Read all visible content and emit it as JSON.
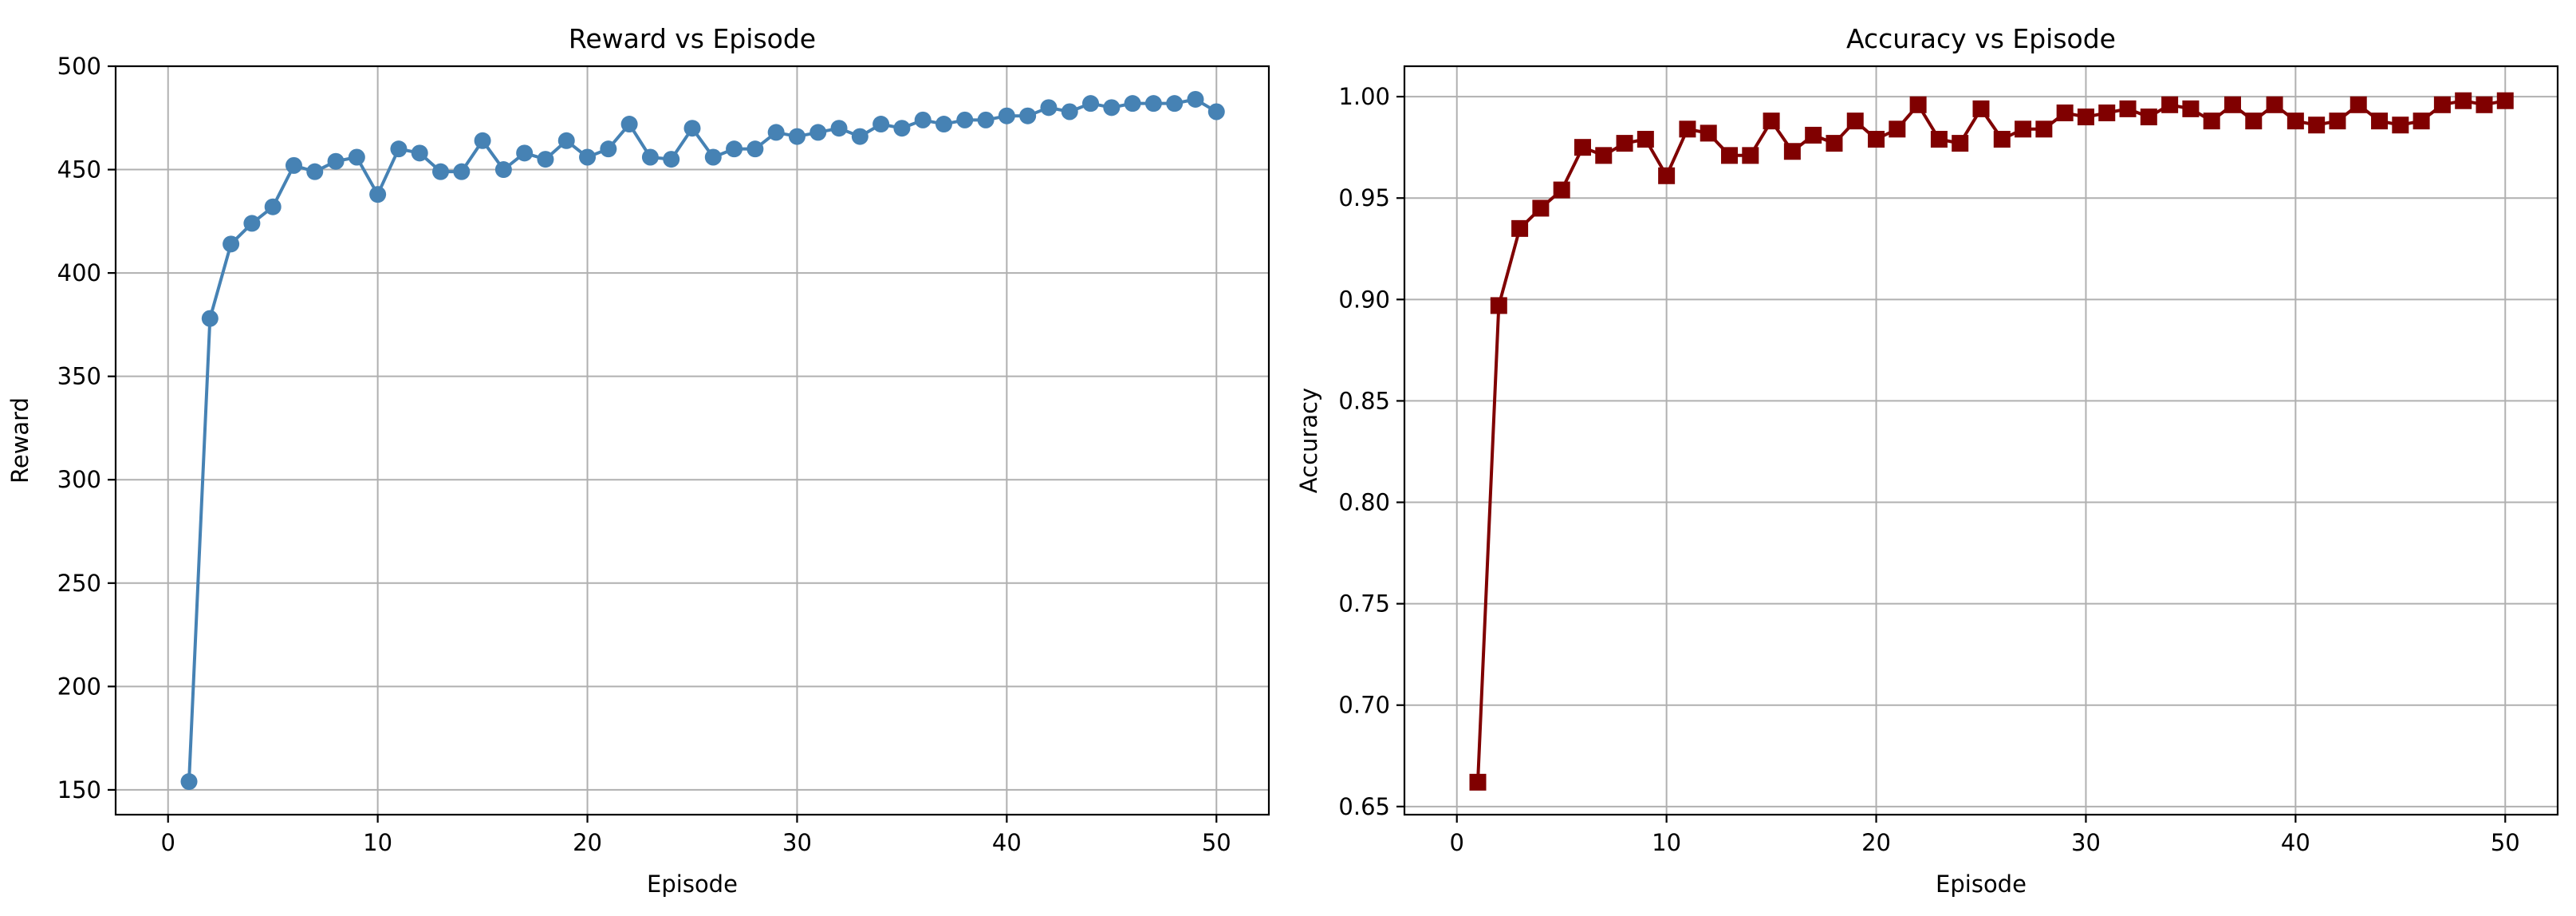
{
  "chart_data": [
    {
      "type": "line",
      "title": "Reward vs Episode",
      "xlabel": "Episode",
      "ylabel": "Reward",
      "xlim": [
        -2.5,
        52.5
      ],
      "ylim": [
        138,
        500
      ],
      "xticks": [
        0,
        10,
        20,
        30,
        40,
        50
      ],
      "yticks": [
        150,
        200,
        250,
        300,
        350,
        400,
        450,
        500
      ],
      "tick_decimals": 0,
      "grid": true,
      "color": "#4682b4",
      "marker": "circle",
      "series": [
        {
          "x": [
            1,
            2,
            3,
            4,
            5,
            6,
            7,
            8,
            9,
            10,
            11,
            12,
            13,
            14,
            15,
            16,
            17,
            18,
            19,
            20,
            21,
            22,
            23,
            24,
            25,
            26,
            27,
            28,
            29,
            30,
            31,
            32,
            33,
            34,
            35,
            36,
            37,
            38,
            39,
            40,
            41,
            42,
            43,
            44,
            45,
            46,
            47,
            48,
            49,
            50
          ],
          "values": [
            154,
            378,
            414,
            424,
            432,
            452,
            449,
            454,
            456,
            438,
            460,
            458,
            449,
            449,
            464,
            450,
            458,
            455,
            464,
            456,
            460,
            472,
            456,
            455,
            470,
            456,
            460,
            460,
            468,
            466,
            468,
            470,
            466,
            472,
            470,
            474,
            472,
            474,
            474,
            476,
            476,
            480,
            478,
            482,
            480,
            482,
            482,
            482,
            484,
            478
          ]
        }
      ]
    },
    {
      "type": "line",
      "title": "Accuracy vs Episode",
      "xlabel": "Episode",
      "ylabel": "Accuracy",
      "xlim": [
        -2.5,
        52.5
      ],
      "ylim": [
        0.646,
        1.015
      ],
      "xticks": [
        0,
        10,
        20,
        30,
        40,
        50
      ],
      "yticks": [
        0.65,
        0.7,
        0.75,
        0.8,
        0.85,
        0.9,
        0.95,
        1.0
      ],
      "tick_decimals": 2,
      "grid": true,
      "color": "#800000",
      "marker": "square",
      "series": [
        {
          "x": [
            1,
            2,
            3,
            4,
            5,
            6,
            7,
            8,
            9,
            10,
            11,
            12,
            13,
            14,
            15,
            16,
            17,
            18,
            19,
            20,
            21,
            22,
            23,
            24,
            25,
            26,
            27,
            28,
            29,
            30,
            31,
            32,
            33,
            34,
            35,
            36,
            37,
            38,
            39,
            40,
            41,
            42,
            43,
            44,
            45,
            46,
            47,
            48,
            49,
            50
          ],
          "values": [
            0.662,
            0.897,
            0.935,
            0.945,
            0.954,
            0.975,
            0.971,
            0.977,
            0.979,
            0.961,
            0.984,
            0.982,
            0.971,
            0.971,
            0.988,
            0.973,
            0.981,
            0.977,
            0.988,
            0.979,
            0.984,
            0.996,
            0.979,
            0.977,
            0.994,
            0.979,
            0.984,
            0.984,
            0.992,
            0.99,
            0.992,
            0.994,
            0.99,
            0.996,
            0.994,
            0.988,
            0.996,
            0.988,
            0.996,
            0.988,
            0.986,
            0.988,
            0.996,
            0.988,
            0.986,
            0.988,
            0.996,
            0.998,
            0.996,
            0.998
          ]
        }
      ]
    }
  ]
}
